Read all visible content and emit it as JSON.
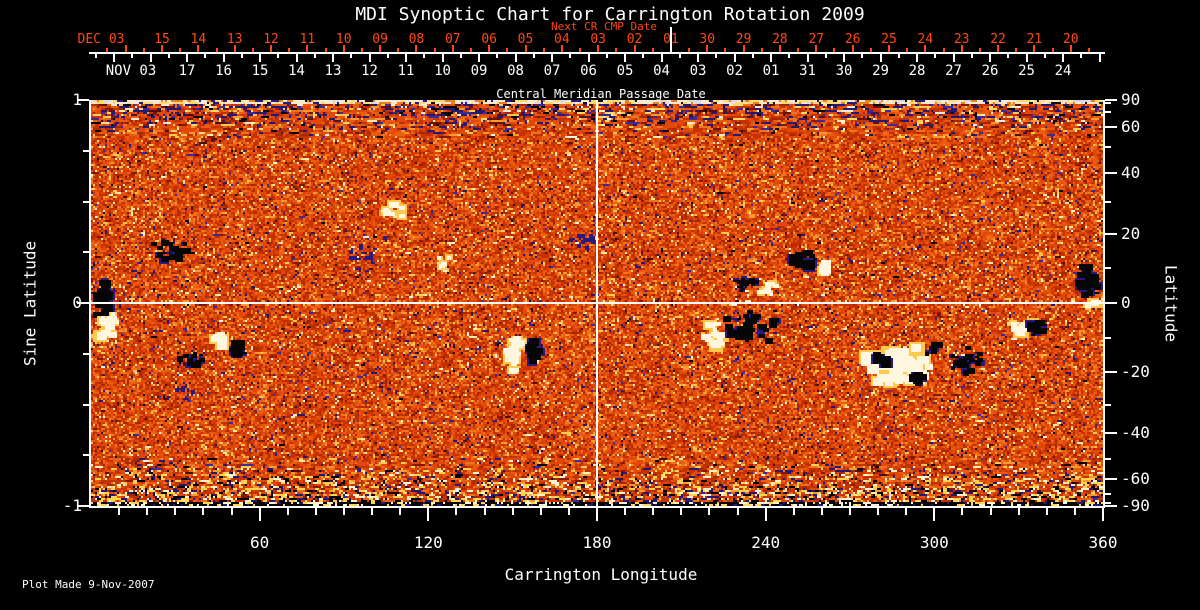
{
  "title": "MDI Synoptic Chart for Carrington Rotation 2009",
  "annotations": {
    "next_cr_label": "Next CR CMP Date",
    "cmp_label": "Central Meridian Passage Date",
    "plot_made": "Plot Made  9-Nov-2007"
  },
  "colors": {
    "background": "#000000",
    "axis": "#ffffff",
    "next_cr_axis": "#ff4812",
    "base_orange": "#e04708",
    "bright_yellow": "#ffc94e",
    "field_white": "#fff6e0",
    "field_black": "#060606",
    "field_navy": "#2a1a80"
  },
  "axes": {
    "top_red": {
      "month_label": "DEC 03",
      "day_labels": [
        "15",
        "14",
        "13",
        "12",
        "11",
        "10",
        "09",
        "08",
        "07",
        "06",
        "05",
        "04",
        "03",
        "02",
        "01",
        "30",
        "29",
        "28",
        "27",
        "26",
        "25",
        "24",
        "23",
        "22",
        "21",
        "20"
      ]
    },
    "top_white": {
      "month_label": "NOV 03",
      "day_labels": [
        "17",
        "16",
        "15",
        "14",
        "13",
        "12",
        "11",
        "10",
        "09",
        "08",
        "07",
        "06",
        "05",
        "04",
        "03",
        "02",
        "01",
        "31",
        "30",
        "29",
        "28",
        "27",
        "26",
        "25",
        "24"
      ]
    },
    "bottom": {
      "title": "Carrington Longitude",
      "tick_labels": [
        "60",
        "120",
        "180",
        "240",
        "300",
        "360"
      ],
      "tick_values": [
        60,
        120,
        180,
        240,
        300,
        360
      ],
      "minor_step_deg": 10,
      "range_deg": [
        0,
        360
      ]
    },
    "left": {
      "title": "Sine Latitude",
      "tick_labels": [
        "1",
        "0",
        "-1"
      ],
      "tick_values": [
        1,
        0,
        -1
      ],
      "minor_step": 0.25,
      "range": [
        -1,
        1
      ]
    },
    "right": {
      "title": "Latitude",
      "tick_labels": [
        "90",
        "60",
        "40",
        "20",
        "0",
        "-20",
        "-40",
        "-60",
        "-90"
      ],
      "tick_values": [
        90,
        60,
        40,
        20,
        0,
        -20,
        -40,
        -60,
        -90
      ],
      "minor_step_deg": 10,
      "range_deg": [
        -90,
        90
      ]
    }
  },
  "chart_data": {
    "type": "heatmap",
    "title": "MDI Synoptic Chart for Carrington Rotation 2009",
    "xlabel": "Carrington Longitude",
    "ylabel_left": "Sine Latitude",
    "ylabel_right": "Latitude",
    "x_range": [
      0,
      360
    ],
    "y_range_sine_latitude": [
      -1,
      1
    ],
    "grid_lines": {
      "vertical_at_lon": 180,
      "horizontal_at_sine_lat": 0,
      "color": "#ffffff"
    },
    "description": "Full-Sun synoptic magnetogram map: speckled orange-red background (weak field noise), white/yellow patches = positive magnetic flux, black/navy patches = negative flux, salt-and-pepper noise bands at the polar (top/bottom) edges.",
    "features": [
      {
        "type": "black",
        "lon": 4,
        "sin_lat": 0.02,
        "rx": 10,
        "ry": 26,
        "n": 40,
        "scale": 1
      },
      {
        "type": "white",
        "lon": 6,
        "sin_lat": -0.11,
        "rx": 9,
        "ry": 14,
        "n": 22,
        "scale": 1
      },
      {
        "type": "black",
        "lon": 27,
        "sin_lat": 0.26,
        "rx": 22,
        "ry": 12,
        "n": 24,
        "scale": 0.8
      },
      {
        "type": "navy",
        "lon": 33,
        "sin_lat": -0.44,
        "rx": 30,
        "ry": 12,
        "n": 14,
        "scale": 0.7
      },
      {
        "type": "black",
        "lon": 36,
        "sin_lat": -0.29,
        "rx": 16,
        "ry": 10,
        "n": 16,
        "scale": 0.7
      },
      {
        "type": "white",
        "lon": 45,
        "sin_lat": -0.18,
        "rx": 7,
        "ry": 7,
        "n": 12,
        "scale": 1
      },
      {
        "type": "black",
        "lon": 52,
        "sin_lat": -0.22,
        "rx": 9,
        "ry": 8,
        "n": 22,
        "scale": 1
      },
      {
        "type": "navy",
        "lon": 97,
        "sin_lat": 0.24,
        "rx": 34,
        "ry": 26,
        "n": 30,
        "scale": 0.6
      },
      {
        "type": "white",
        "lon": 107,
        "sin_lat": 0.45,
        "rx": 20,
        "ry": 12,
        "n": 12,
        "scale": 0.7
      },
      {
        "type": "white",
        "lon": 125,
        "sin_lat": 0.2,
        "rx": 10,
        "ry": 10,
        "n": 8,
        "scale": 0.6
      },
      {
        "type": "white",
        "lon": 150,
        "sin_lat": -0.26,
        "rx": 7,
        "ry": 18,
        "n": 24,
        "scale": 1
      },
      {
        "type": "black",
        "lon": 157,
        "sin_lat": -0.23,
        "rx": 8,
        "ry": 14,
        "n": 20,
        "scale": 1
      },
      {
        "type": "navy",
        "lon": 176,
        "sin_lat": 0.31,
        "rx": 24,
        "ry": 12,
        "n": 18,
        "scale": 0.7
      },
      {
        "type": "white",
        "lon": 222,
        "sin_lat": -0.16,
        "rx": 12,
        "ry": 16,
        "n": 20,
        "scale": 1
      },
      {
        "type": "black",
        "lon": 235,
        "sin_lat": -0.12,
        "rx": 30,
        "ry": 16,
        "n": 38,
        "scale": 1
      },
      {
        "type": "black",
        "lon": 234,
        "sin_lat": 0.1,
        "rx": 14,
        "ry": 9,
        "n": 18,
        "scale": 0.7
      },
      {
        "type": "white",
        "lon": 241,
        "sin_lat": 0.07,
        "rx": 10,
        "ry": 7,
        "n": 10,
        "scale": 0.7
      },
      {
        "type": "black",
        "lon": 253,
        "sin_lat": 0.2,
        "rx": 14,
        "ry": 12,
        "n": 28,
        "scale": 1
      },
      {
        "type": "white",
        "lon": 261,
        "sin_lat": 0.18,
        "rx": 6,
        "ry": 6,
        "n": 10,
        "scale": 1
      },
      {
        "type": "white",
        "lon": 287,
        "sin_lat": -0.31,
        "rx": 36,
        "ry": 20,
        "n": 70,
        "scale": 1.3
      },
      {
        "type": "black",
        "lon": 280,
        "sin_lat": -0.27,
        "rx": 8,
        "ry": 8,
        "n": 14,
        "scale": 1
      },
      {
        "type": "black",
        "lon": 294,
        "sin_lat": -0.37,
        "rx": 9,
        "ry": 7,
        "n": 12,
        "scale": 1
      },
      {
        "type": "black",
        "lon": 299,
        "sin_lat": -0.23,
        "rx": 7,
        "ry": 6,
        "n": 10,
        "scale": 1
      },
      {
        "type": "black",
        "lon": 312,
        "sin_lat": -0.29,
        "rx": 26,
        "ry": 14,
        "n": 24,
        "scale": 0.8
      },
      {
        "type": "white",
        "lon": 332,
        "sin_lat": -0.12,
        "rx": 12,
        "ry": 8,
        "n": 16,
        "scale": 1
      },
      {
        "type": "black",
        "lon": 336,
        "sin_lat": -0.13,
        "rx": 8,
        "ry": 7,
        "n": 12,
        "scale": 1
      },
      {
        "type": "black",
        "lon": 355,
        "sin_lat": 0.11,
        "rx": 12,
        "ry": 18,
        "n": 28,
        "scale": 1
      },
      {
        "type": "white",
        "lon": 356,
        "sin_lat": -0.01,
        "rx": 7,
        "ry": 5,
        "n": 8,
        "scale": 0.8
      }
    ]
  }
}
